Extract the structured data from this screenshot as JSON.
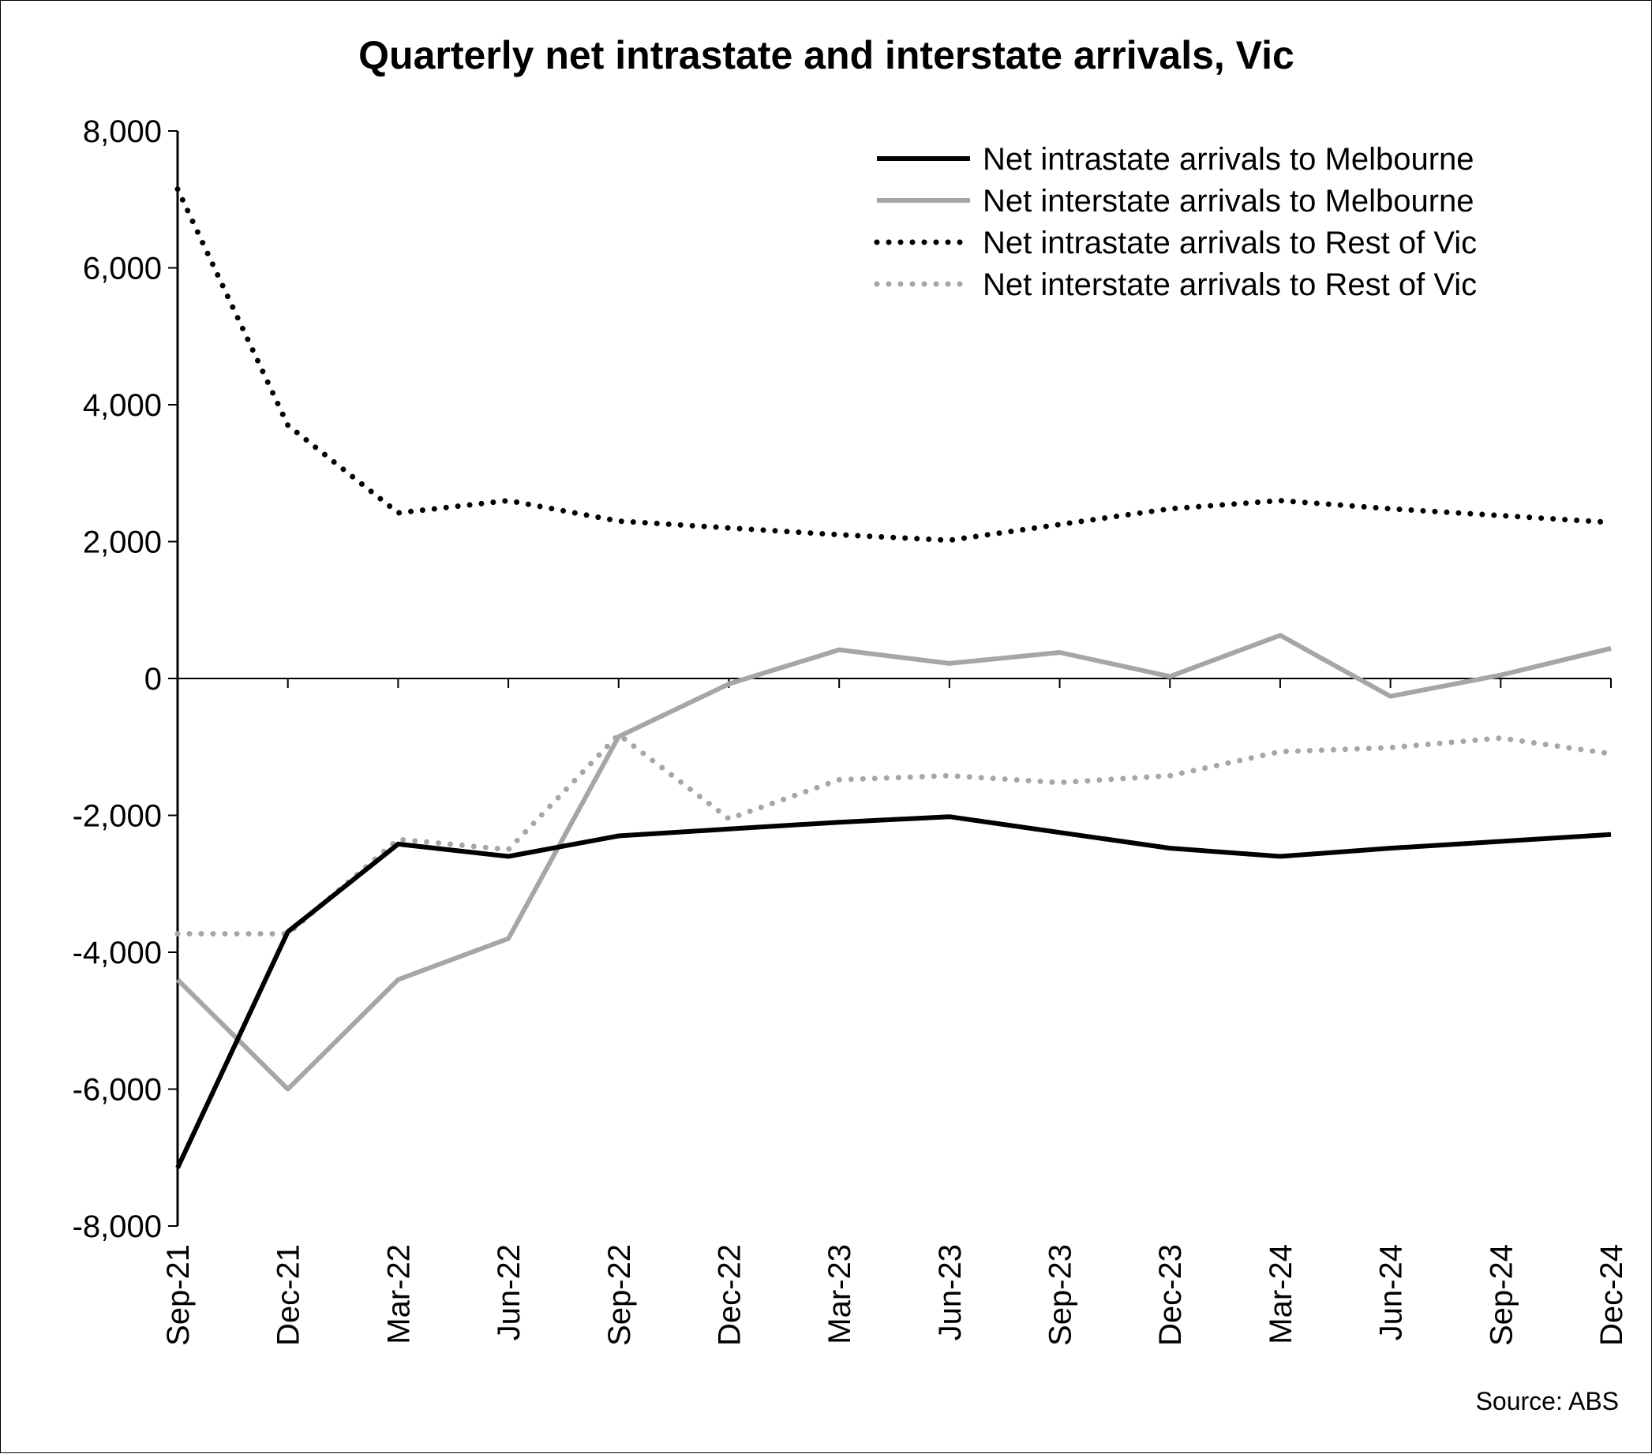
{
  "chart_data": {
    "type": "line",
    "title": "Quarterly net intrastate and interstate arrivals, Vic",
    "source": "Source: ABS",
    "xlabel": "",
    "ylabel": "",
    "ylim": [
      -8000,
      8000
    ],
    "yticks": [
      8000,
      6000,
      4000,
      2000,
      0,
      -2000,
      -4000,
      -6000,
      -8000
    ],
    "ytick_labels": [
      "8,000",
      "6,000",
      "4,000",
      "2,000",
      "0",
      "-2,000",
      "-4,000",
      "-6,000",
      "-8,000"
    ],
    "grid": false,
    "legend_position": "top-right",
    "categories": [
      "Sep-21",
      "Dec-21",
      "Mar-22",
      "Jun-22",
      "Sep-22",
      "Dec-22",
      "Mar-23",
      "Jun-23",
      "Sep-23",
      "Dec-23",
      "Mar-24",
      "Jun-24",
      "Sep-24",
      "Dec-24"
    ],
    "series": [
      {
        "name": "Net intrastate arrivals to Melbourne",
        "color": "#000000",
        "style": "solid",
        "values": [
          -7150,
          -3700,
          -2420,
          -2600,
          -2300,
          -2200,
          -2100,
          -2020,
          -2250,
          -2480,
          -2600,
          -2480,
          -2380,
          -2280
        ]
      },
      {
        "name": "Net interstate arrivals to Melbourne",
        "color": "#a6a6a6",
        "style": "solid",
        "values": [
          -4400,
          -6000,
          -4400,
          -3800,
          -850,
          -80,
          420,
          220,
          380,
          30,
          630,
          -260,
          50,
          440
        ]
      },
      {
        "name": "Net intrastate arrivals to Rest of Vic",
        "color": "#000000",
        "style": "dotted",
        "values": [
          7150,
          3700,
          2420,
          2600,
          2300,
          2200,
          2100,
          2020,
          2250,
          2480,
          2600,
          2480,
          2380,
          2280
        ]
      },
      {
        "name": "Net interstate arrivals to Rest of Vic",
        "color": "#a6a6a6",
        "style": "dotted",
        "values": [
          -3730,
          -3730,
          -2350,
          -2500,
          -820,
          -2050,
          -1480,
          -1420,
          -1520,
          -1420,
          -1070,
          -1010,
          -870,
          -1100
        ]
      }
    ]
  }
}
